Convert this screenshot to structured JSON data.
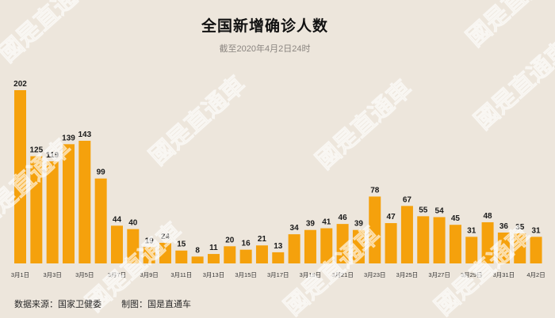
{
  "footer": {
    "source": "数据来源：国家卫健委",
    "credit": "制图：国是直通车"
  },
  "watermark": "國是直通車",
  "colors": {
    "background": "#ede6dc",
    "bar": "#f5a10c",
    "text": "#1a1a1a",
    "subtitle": "#8a8580"
  },
  "chart_data": {
    "type": "bar",
    "title": "全国新增确诊人数",
    "subtitle": "截至2020年4月2日24时",
    "categories": [
      "3月1日",
      "",
      "3月3日",
      "",
      "3月5日",
      "",
      "3月7日",
      "",
      "3月9日",
      "",
      "3月11日",
      "",
      "3月13日",
      "",
      "3月15日",
      "",
      "3月17日",
      "",
      "3月19日",
      "",
      "3月21日",
      "",
      "3月23日",
      "",
      "3月25日",
      "",
      "3月27日",
      "",
      "3月29日",
      "",
      "3月31日",
      "",
      "4月2日"
    ],
    "values": [
      202,
      125,
      119,
      139,
      143,
      99,
      44,
      40,
      19,
      24,
      15,
      8,
      11,
      20,
      16,
      21,
      13,
      34,
      39,
      41,
      46,
      39,
      78,
      47,
      67,
      55,
      54,
      45,
      31,
      48,
      36,
      35,
      31
    ],
    "xlabel": "",
    "ylabel": "",
    "ylim": [
      0,
      202
    ],
    "grid": false,
    "legend": "none",
    "data_labels": true
  }
}
